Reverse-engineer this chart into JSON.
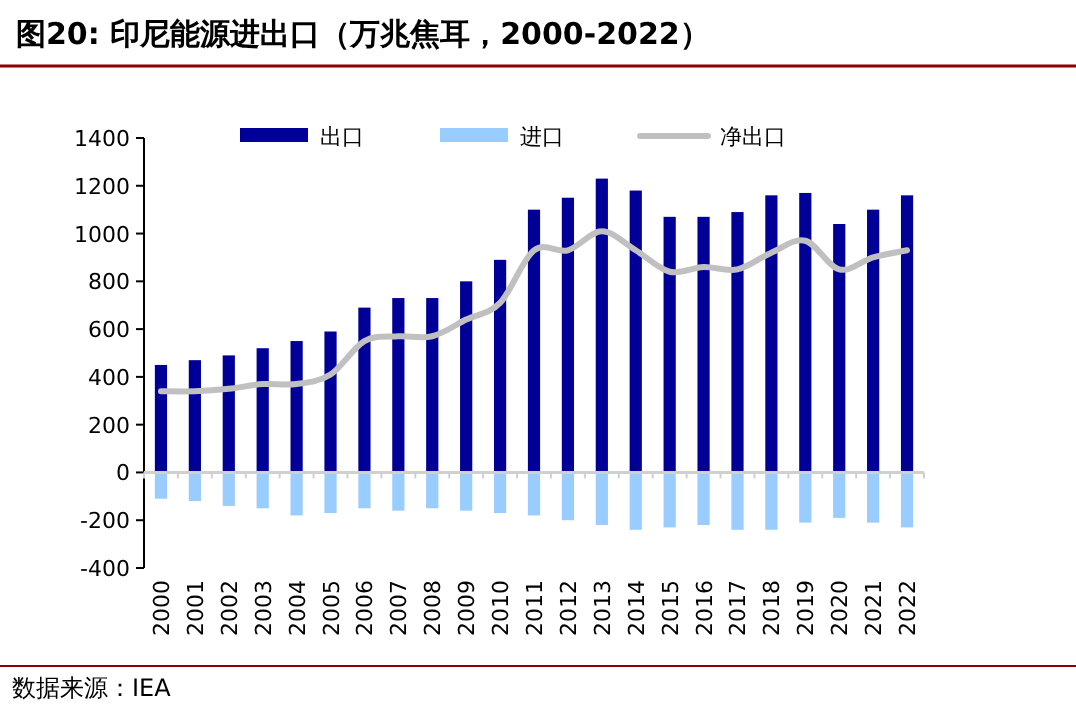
{
  "chart_data": {
    "type": "bar",
    "title": "图20:  印尼能源进出口（万兆焦耳，2000-2022）",
    "categories": [
      "2000",
      "2001",
      "2002",
      "2003",
      "2004",
      "2005",
      "2006",
      "2007",
      "2008",
      "2009",
      "2010",
      "2011",
      "2012",
      "2013",
      "2014",
      "2015",
      "2016",
      "2017",
      "2018",
      "2019",
      "2020",
      "2021",
      "2022"
    ],
    "series": [
      {
        "name": "出口",
        "color": "#000099",
        "values": [
          450,
          470,
          490,
          520,
          550,
          590,
          690,
          730,
          730,
          800,
          890,
          1100,
          1150,
          1230,
          1180,
          1070,
          1070,
          1090,
          1160,
          1170,
          1040,
          1100,
          1160
        ]
      },
      {
        "name": "进口",
        "color": "#99ccff",
        "values": [
          -110,
          -120,
          -140,
          -150,
          -180,
          -170,
          -150,
          -160,
          -150,
          -160,
          -170,
          -180,
          -200,
          -220,
          -240,
          -230,
          -220,
          -240,
          -240,
          -210,
          -190,
          -210,
          -230
        ]
      },
      {
        "name": "净出口",
        "type": "line",
        "color": "#c0c0c0",
        "values": [
          340,
          340,
          350,
          370,
          370,
          410,
          550,
          570,
          570,
          640,
          710,
          930,
          930,
          1010,
          930,
          840,
          860,
          850,
          920,
          970,
          850,
          900,
          930
        ]
      }
    ],
    "ylim": [
      -400,
      1400
    ],
    "yticks": [
      -400,
      -200,
      0,
      200,
      400,
      600,
      800,
      1000,
      1200,
      1400
    ],
    "legend": "top",
    "stacked": true,
    "annotations": [
      "数据来源：IEA"
    ]
  }
}
